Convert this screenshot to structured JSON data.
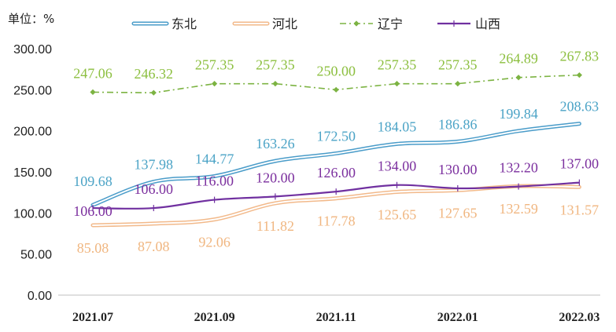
{
  "chart_data": {
    "type": "line",
    "unit_label": "单位：%",
    "x": [
      "2021.07",
      "2021.08",
      "2021.09",
      "2021.10",
      "2021.11",
      "2021.12",
      "2022.01",
      "2022.02",
      "2022.03"
    ],
    "xtick_labels": [
      "2021.07",
      "2021.09",
      "2021.11",
      "2022.01",
      "2022.03"
    ],
    "ylim": [
      0,
      300
    ],
    "yticks": [
      "0.00",
      "50.00",
      "100.00",
      "150.00",
      "200.00",
      "250.00",
      "300.00"
    ],
    "grid": false,
    "legend_position": "top",
    "series": [
      {
        "name": "东北",
        "style": "double-line",
        "color": "#4a9cc9",
        "values": [
          109.68,
          137.98,
          144.77,
          163.26,
          172.5,
          184.05,
          186.86,
          199.84,
          208.63
        ],
        "labels": [
          "109.68",
          "137.98",
          "144.77",
          "163.26",
          "172.50",
          "184.05",
          "186.86",
          "199.84",
          "208.63"
        ]
      },
      {
        "name": "河北",
        "style": "double-line",
        "color": "#f2b98a",
        "values": [
          85.08,
          87.08,
          92.06,
          111.82,
          117.78,
          125.65,
          127.65,
          132.59,
          131.57
        ],
        "labels": [
          "85.08",
          "87.08",
          "92.06",
          "111.82",
          "117.78",
          "125.65",
          "127.65",
          "132.59",
          "131.57"
        ]
      },
      {
        "name": "辽宁",
        "style": "dash-dot-diamond",
        "color": "#7cb342",
        "values": [
          247.06,
          246.32,
          257.35,
          257.35,
          250.0,
          257.35,
          257.35,
          264.89,
          267.83
        ],
        "labels": [
          "247.06",
          "246.32",
          "257.35",
          "257.35",
          "250.00",
          "257.35",
          "257.35",
          "264.89",
          "267.83"
        ]
      },
      {
        "name": "山西",
        "style": "line-bar-marker",
        "color": "#7030a0",
        "values": [
          106.0,
          106.0,
          116.0,
          120.0,
          126.0,
          134.0,
          130.0,
          132.2,
          137.0
        ],
        "labels": [
          "106.00",
          "106.00",
          "116.00",
          "120.00",
          "126.00",
          "134.00",
          "130.00",
          "132.20",
          "137.00"
        ]
      }
    ]
  }
}
